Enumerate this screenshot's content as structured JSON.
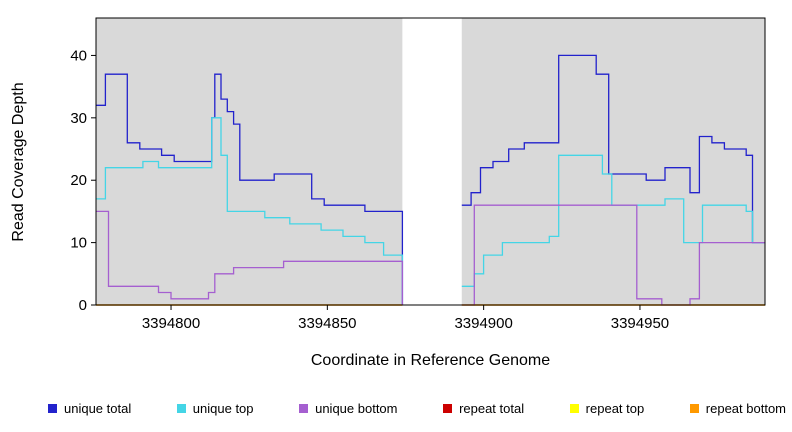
{
  "chart_data": {
    "type": "line",
    "style": "step",
    "title": "",
    "xlabel": "Coordinate in Reference Genome",
    "ylabel": "Read Coverage Depth",
    "xlim": [
      3394776,
      3394990
    ],
    "ylim": [
      0,
      46
    ],
    "xticks": [
      3394800,
      3394850,
      3394900,
      3394950
    ],
    "yticks": [
      0,
      10,
      20,
      30,
      40
    ],
    "panel_color": "#d9d9d9",
    "gap_region": [
      3394874,
      3394893
    ],
    "segments": [
      [
        3394776,
        3394874
      ],
      [
        3394893,
        3394990
      ]
    ],
    "series": [
      {
        "name": "repeat total",
        "color": "#cc0000",
        "segments": [
          [
            [
              3394776,
              0
            ],
            [
              3394874,
              0
            ]
          ],
          [
            [
              3394893,
              0
            ],
            [
              3394990,
              0
            ]
          ]
        ]
      },
      {
        "name": "repeat top",
        "color": "#ffff00",
        "segments": [
          [
            [
              3394776,
              0
            ],
            [
              3394874,
              0
            ]
          ],
          [
            [
              3394893,
              0
            ],
            [
              3394990,
              0
            ]
          ]
        ]
      },
      {
        "name": "unique total",
        "color": "#2222cc",
        "segments": [
          [
            [
              3394776,
              32
            ],
            [
              3394779,
              37
            ],
            [
              3394786,
              26
            ],
            [
              3394790,
              25
            ],
            [
              3394797,
              24
            ],
            [
              3394801,
              23
            ],
            [
              3394813,
              30
            ],
            [
              3394814,
              37
            ],
            [
              3394816,
              33
            ],
            [
              3394818,
              31
            ],
            [
              3394820,
              29
            ],
            [
              3394822,
              20
            ],
            [
              3394833,
              21
            ],
            [
              3394845,
              17
            ],
            [
              3394849,
              16
            ],
            [
              3394862,
              15
            ],
            [
              3394874,
              0
            ]
          ],
          [
            [
              3394893,
              16
            ],
            [
              3394896,
              18
            ],
            [
              3394899,
              22
            ],
            [
              3394903,
              23
            ],
            [
              3394908,
              25
            ],
            [
              3394913,
              26
            ],
            [
              3394924,
              40
            ],
            [
              3394936,
              37
            ],
            [
              3394940,
              21
            ],
            [
              3394952,
              20
            ],
            [
              3394958,
              22
            ],
            [
              3394966,
              18
            ],
            [
              3394969,
              27
            ],
            [
              3394973,
              26
            ],
            [
              3394977,
              25
            ],
            [
              3394984,
              24
            ],
            [
              3394986,
              10
            ],
            [
              3394990,
              10
            ]
          ]
        ]
      },
      {
        "name": "unique top",
        "color": "#44d5e6",
        "segments": [
          [
            [
              3394776,
              17
            ],
            [
              3394779,
              22
            ],
            [
              3394791,
              23
            ],
            [
              3394796,
              22
            ],
            [
              3394813,
              30
            ],
            [
              3394816,
              24
            ],
            [
              3394818,
              15
            ],
            [
              3394830,
              14
            ],
            [
              3394838,
              13
            ],
            [
              3394848,
              12
            ],
            [
              3394855,
              11
            ],
            [
              3394862,
              10
            ],
            [
              3394868,
              8
            ],
            [
              3394874,
              0
            ]
          ],
          [
            [
              3394893,
              3
            ],
            [
              3394897,
              5
            ],
            [
              3394900,
              8
            ],
            [
              3394906,
              10
            ],
            [
              3394921,
              11
            ],
            [
              3394924,
              24
            ],
            [
              3394938,
              21
            ],
            [
              3394941,
              16
            ],
            [
              3394958,
              17
            ],
            [
              3394964,
              10
            ],
            [
              3394970,
              16
            ],
            [
              3394984,
              15
            ],
            [
              3394986,
              10
            ],
            [
              3394990,
              10
            ]
          ]
        ]
      },
      {
        "name": "unique bottom",
        "color": "#a55fd0",
        "segments": [
          [
            [
              3394776,
              15
            ],
            [
              3394780,
              3
            ],
            [
              3394796,
              2
            ],
            [
              3394800,
              1
            ],
            [
              3394812,
              2
            ],
            [
              3394814,
              5
            ],
            [
              3394820,
              6
            ],
            [
              3394836,
              7
            ],
            [
              3394874,
              0
            ]
          ],
          [
            [
              3394893,
              0
            ],
            [
              3394897,
              16
            ],
            [
              3394949,
              1
            ],
            [
              3394957,
              0
            ],
            [
              3394966,
              1
            ],
            [
              3394969,
              10
            ],
            [
              3394990,
              10
            ]
          ]
        ]
      },
      {
        "name": "repeat bottom",
        "color": "#ff9900",
        "segments": [
          [
            [
              3394776,
              0
            ],
            [
              3394874,
              0
            ]
          ],
          [
            [
              3394893,
              0
            ],
            [
              3394990,
              0
            ]
          ]
        ]
      }
    ],
    "legend": [
      {
        "label": "unique total",
        "color": "#2222cc"
      },
      {
        "label": "unique top",
        "color": "#44d5e6"
      },
      {
        "label": "unique bottom",
        "color": "#a55fd0"
      },
      {
        "label": "repeat total",
        "color": "#cc0000"
      },
      {
        "label": "repeat top",
        "color": "#ffff00"
      },
      {
        "label": "repeat bottom",
        "color": "#ff9900"
      }
    ],
    "legend_position": "bottom"
  }
}
